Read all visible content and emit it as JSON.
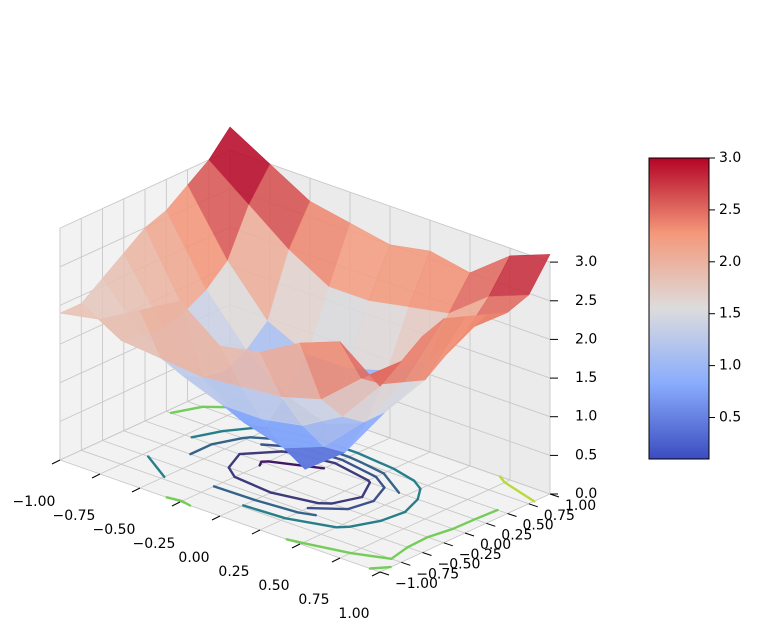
{
  "chart_data": {
    "type": "surface3d",
    "title": "",
    "xlabel": "",
    "ylabel": "",
    "zlabel": "",
    "xlim": [
      -1.0,
      1.0
    ],
    "ylim": [
      -1.0,
      1.0
    ],
    "zlim": [
      0.0,
      3.0
    ],
    "grid": true,
    "x_ticks": [
      "−1.00",
      "−0.75",
      "−0.50",
      "−0.25",
      "0.00",
      "0.25",
      "0.50",
      "0.75",
      "1.00"
    ],
    "y_ticks": [
      "−1.00",
      "−0.75",
      "−0.50",
      "−0.25",
      "0.00",
      "0.25",
      "0.50",
      "0.75",
      "1.00"
    ],
    "z_ticks": [
      "0.0",
      "0.5",
      "1.0",
      "1.5",
      "2.0",
      "2.5",
      "3.0"
    ],
    "x_values": [
      -1.0,
      -0.75,
      -0.5,
      -0.25,
      0.0,
      0.25,
      0.5,
      0.75,
      1.0
    ],
    "y_values": [
      -1.0,
      -0.75,
      -0.5,
      -0.25,
      0.0,
      0.25,
      0.5,
      0.75,
      1.0
    ],
    "z_grid": [
      [
        1.9,
        2.0,
        2.3,
        2.6,
        2.2,
        2.3,
        2.6,
        2.8,
        2.4
      ],
      [
        1.9,
        1.6,
        1.55,
        1.5,
        1.55,
        1.6,
        1.75,
        2.2,
        2.6
      ],
      [
        2.1,
        1.55,
        1.2,
        1.0,
        1.0,
        1.1,
        1.4,
        2.0,
        2.8
      ],
      [
        2.3,
        1.5,
        1.05,
        0.65,
        0.5,
        0.7,
        1.2,
        1.9,
        2.9
      ],
      [
        2.5,
        1.6,
        1.0,
        0.45,
        0.1,
        0.5,
        1.2,
        1.8,
        2.8
      ],
      [
        2.6,
        1.75,
        1.15,
        0.75,
        0.55,
        0.75,
        1.3,
        2.0,
        2.7
      ],
      [
        2.8,
        2.0,
        1.4,
        1.15,
        1.15,
        1.3,
        1.6,
        2.2,
        2.6
      ],
      [
        3.0,
        2.6,
        2.2,
        1.9,
        1.9,
        2.0,
        2.1,
        2.5,
        2.7
      ],
      [
        3.3,
        3.0,
        2.7,
        2.6,
        2.5,
        2.6,
        2.5,
        2.9,
        3.1
      ]
    ],
    "contour_levels": [
      0.5,
      0.8,
      1.0,
      1.2,
      1.5,
      2.5,
      2.8
    ],
    "colormap": "coolwarm",
    "colorbar": {
      "min": 0.1,
      "max": 3.0,
      "ticks": [
        "0.5",
        "1.0",
        "1.5",
        "2.0",
        "2.5",
        "3.0"
      ],
      "tick_values": [
        0.5,
        1.0,
        1.5,
        2.0,
        2.5,
        3.0
      ]
    }
  }
}
